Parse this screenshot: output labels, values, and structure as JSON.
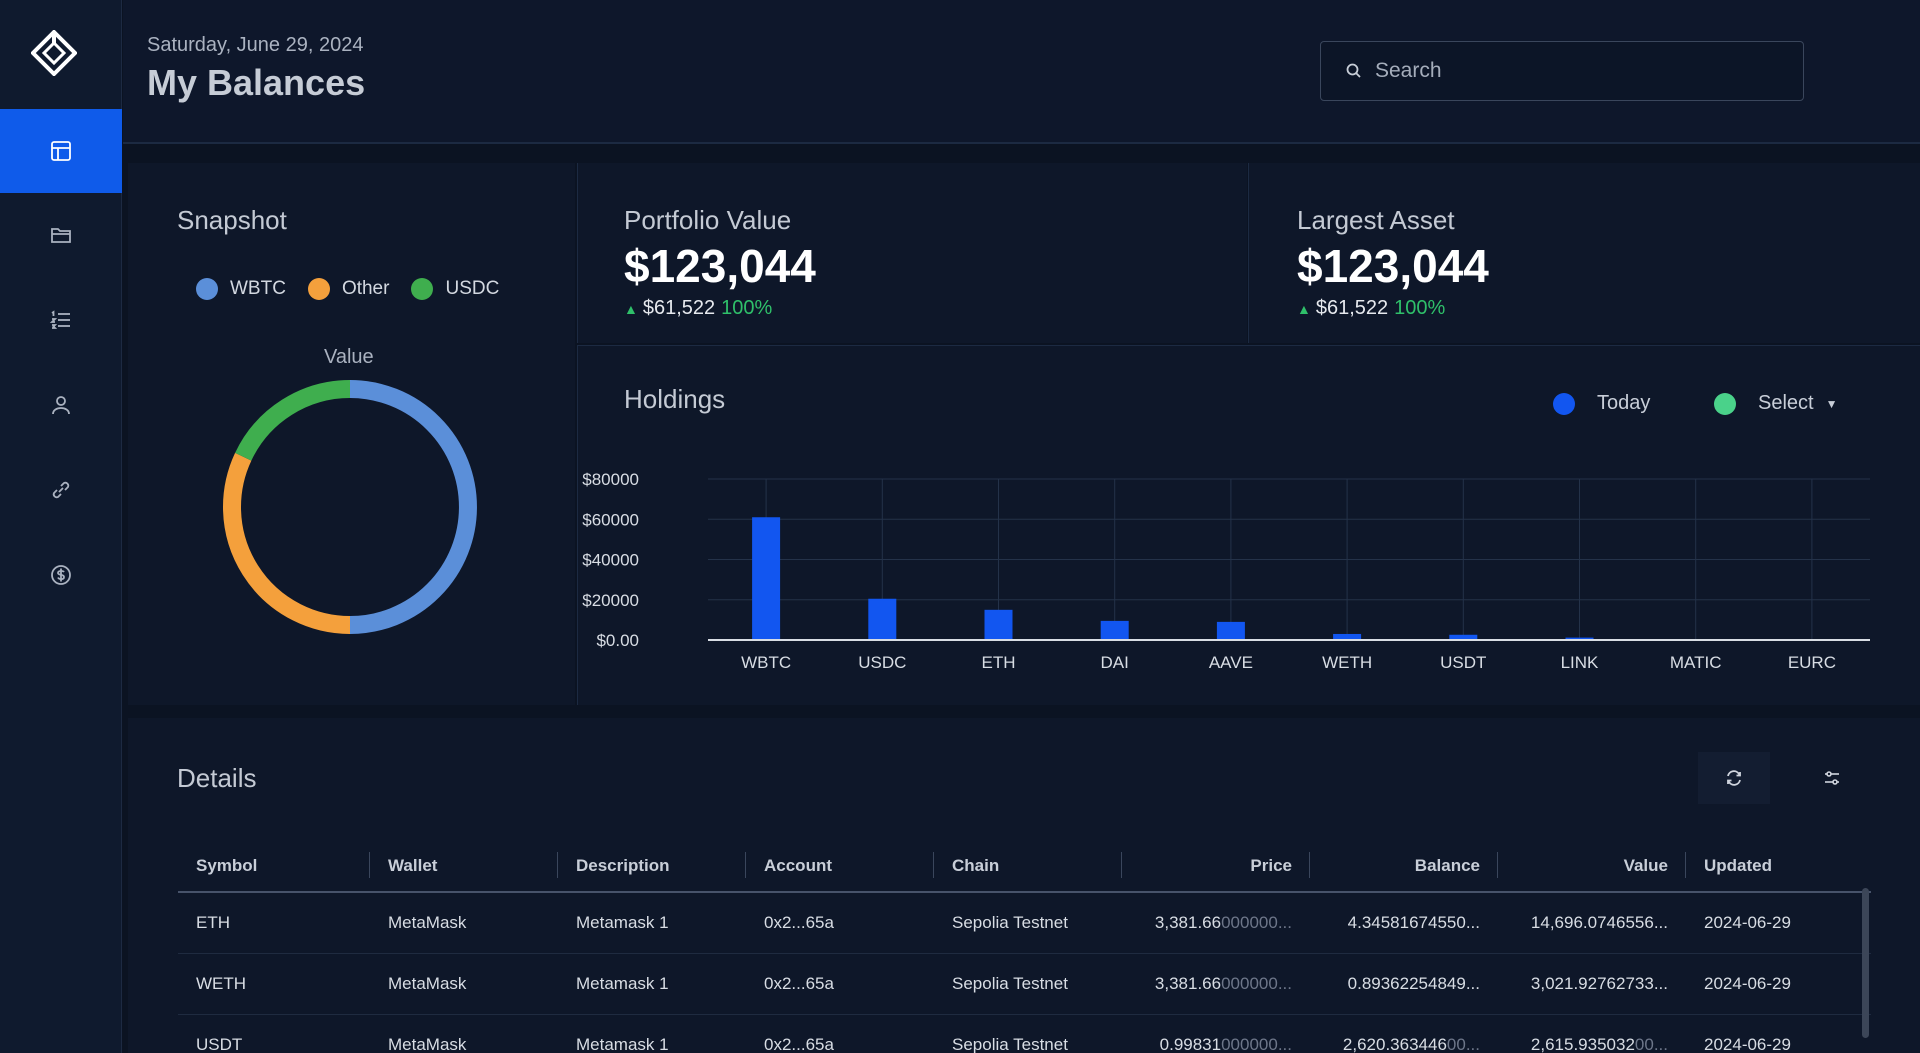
{
  "header": {
    "date": "Saturday, June 29, 2024",
    "title": "My Balances",
    "search_placeholder": "Search"
  },
  "sidebar": {
    "items": [
      {
        "icon": "dashboard-icon",
        "active": true
      },
      {
        "icon": "folder-icon",
        "active": false
      },
      {
        "icon": "list-icon",
        "active": false
      },
      {
        "icon": "user-icon",
        "active": false
      },
      {
        "icon": "link-icon",
        "active": false
      },
      {
        "icon": "dollar-icon",
        "active": false
      }
    ]
  },
  "snapshot": {
    "title": "Snapshot",
    "legend": [
      {
        "label": "WBTC",
        "color": "#5b8fd9"
      },
      {
        "label": "Other",
        "color": "#f4a03c"
      },
      {
        "label": "USDC",
        "color": "#3fae4e"
      }
    ],
    "value_label": "Value"
  },
  "portfolio": {
    "title": "Portfolio Value",
    "value": "$123,044",
    "change": "$61,522",
    "pct": "100%"
  },
  "largest": {
    "title": "Largest Asset",
    "value": "$123,044",
    "change": "$61,522",
    "pct": "100%"
  },
  "holdings": {
    "title": "Holdings",
    "legend_today": "Today",
    "legend_select": "Select",
    "today_color": "#1256f0",
    "select_color": "#4ad28a"
  },
  "chart_data": [
    {
      "type": "pie",
      "title": "Value",
      "labels": [
        "WBTC",
        "Other",
        "USDC"
      ],
      "values": [
        50,
        32,
        18
      ],
      "colors": [
        "#5b8fd9",
        "#f4a03c",
        "#3fae4e"
      ]
    },
    {
      "type": "bar",
      "categories": [
        "WBTC",
        "USDC",
        "ETH",
        "DAI",
        "AAVE",
        "WETH",
        "USDT",
        "LINK",
        "MATIC",
        "EURC"
      ],
      "series": [
        {
          "name": "Today",
          "values": [
            61000,
            20500,
            15000,
            9500,
            9000,
            3000,
            2600,
            1200,
            0,
            0
          ]
        }
      ],
      "yticks": [
        "$0.00",
        "$20000",
        "$40000",
        "$60000",
        "$80000"
      ],
      "ylim": [
        0,
        80000
      ],
      "grid": true
    }
  ],
  "details": {
    "title": "Details",
    "columns": [
      "Symbol",
      "Wallet",
      "Description",
      "Account",
      "Chain",
      "Price",
      "Balance",
      "Value",
      "Updated"
    ],
    "rows": [
      {
        "symbol": "ETH",
        "wallet": "MetaMask",
        "description": "Metamask 1",
        "account": "0x2...65a",
        "chain": "Sepolia Testnet",
        "price": "3,381.66",
        "price_dim": "000000...",
        "balance": "4.34581674550...",
        "balance_dim": "",
        "value": "14,696.0746556...",
        "value_dim": "",
        "updated": "2024-06-29"
      },
      {
        "symbol": "WETH",
        "wallet": "MetaMask",
        "description": "Metamask 1",
        "account": "0x2...65a",
        "chain": "Sepolia Testnet",
        "price": "3,381.66",
        "price_dim": "000000...",
        "balance": "0.89362254849...",
        "balance_dim": "",
        "value": "3,021.92762733...",
        "value_dim": "",
        "updated": "2024-06-29"
      },
      {
        "symbol": "USDT",
        "wallet": "MetaMask",
        "description": "Metamask 1",
        "account": "0x2...65a",
        "chain": "Sepolia Testnet",
        "price": "0.99831",
        "price_dim": "000000...",
        "balance": "2,620.363446",
        "balance_dim": "00...",
        "value": "2,615.935032",
        "value_dim": "00...",
        "updated": "2024-06-29"
      }
    ]
  }
}
